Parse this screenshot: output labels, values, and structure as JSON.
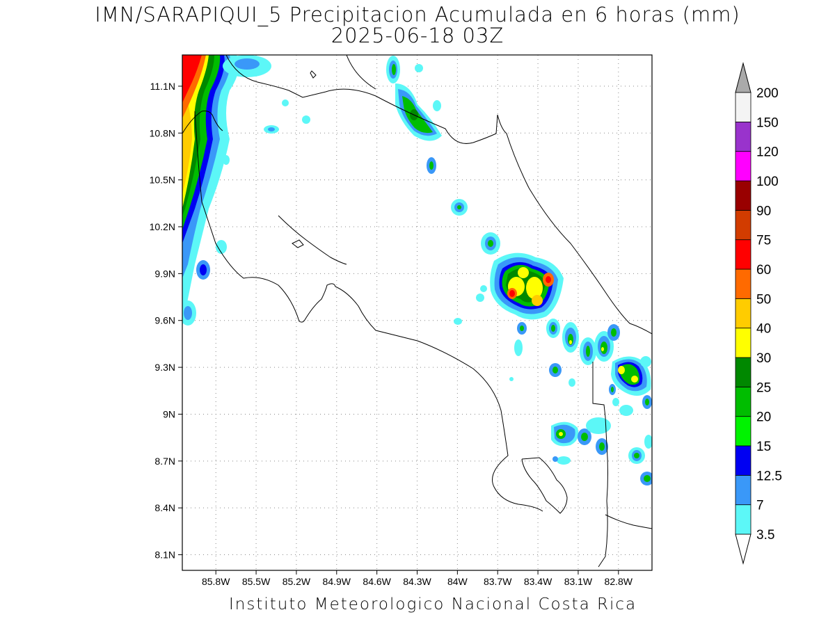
{
  "title": {
    "line1": "IMN/SARAPIQUI_5 Precipitacion Acumulada en 6 horas (mm)",
    "line2": "2025-06-18 03Z"
  },
  "footer": "Instituto Meteorologico Nacional Costa Rica",
  "map": {
    "lon_range": [
      -86.05,
      -82.55
    ],
    "lat_range": [
      8.0,
      11.3
    ],
    "lon_ticks": [
      {
        "value": -85.8,
        "label": "85.8W"
      },
      {
        "value": -85.5,
        "label": "85.5W"
      },
      {
        "value": -85.2,
        "label": "85.2W"
      },
      {
        "value": -84.9,
        "label": "84.9W"
      },
      {
        "value": -84.6,
        "label": "84.6W"
      },
      {
        "value": -84.3,
        "label": "84.3W"
      },
      {
        "value": -84.0,
        "label": "84W"
      },
      {
        "value": -83.7,
        "label": "83.7W"
      },
      {
        "value": -83.4,
        "label": "83.4W"
      },
      {
        "value": -83.1,
        "label": "83.1W"
      },
      {
        "value": -82.8,
        "label": "82.8W"
      }
    ],
    "lat_ticks": [
      {
        "value": 11.1,
        "label": "11.1N"
      },
      {
        "value": 10.8,
        "label": "10.8N"
      },
      {
        "value": 10.5,
        "label": "10.5N"
      },
      {
        "value": 10.2,
        "label": "10.2N"
      },
      {
        "value": 9.9,
        "label": "9.9N"
      },
      {
        "value": 9.6,
        "label": "9.6N"
      },
      {
        "value": 9.3,
        "label": "9.3N"
      },
      {
        "value": 9.0,
        "label": "9N"
      },
      {
        "value": 8.7,
        "label": "8.7N"
      },
      {
        "value": 8.4,
        "label": "8.4N"
      },
      {
        "value": 8.1,
        "label": "8.1N"
      }
    ],
    "grid": true
  },
  "colorbar": {
    "labels": [
      "3.5",
      "7",
      "12.5",
      "15",
      "20",
      "25",
      "30",
      "40",
      "50",
      "60",
      "75",
      "90",
      "100",
      "120",
      "150",
      "200"
    ],
    "colors": [
      "#5cf7f7",
      "#3a98f8",
      "#0000f2",
      "#00f300",
      "#00bd00",
      "#008800",
      "#ffff00",
      "#ffcc00",
      "#ff6a00",
      "#ff0000",
      "#d23c00",
      "#990000",
      "#ff00ff",
      "#9933cc",
      "#f4f4f4"
    ],
    "below_color": "#ffffff",
    "above_color": "#aaaaaa"
  }
}
